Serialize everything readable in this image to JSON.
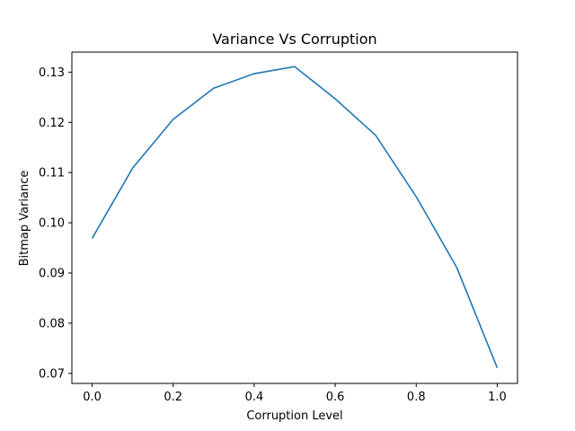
{
  "chart_data": {
    "type": "line",
    "title": "Variance Vs Corruption",
    "xlabel": "Corruption Level",
    "ylabel": "Bitmap Variance",
    "xlim": [
      -0.05,
      1.05
    ],
    "ylim": [
      0.068,
      0.134
    ],
    "grid": false,
    "x_ticks": [
      "0.0",
      "0.2",
      "0.4",
      "0.6",
      "0.8",
      "1.0"
    ],
    "y_ticks": [
      "0.07",
      "0.08",
      "0.09",
      "0.10",
      "0.11",
      "0.12",
      "0.13"
    ],
    "series": [
      {
        "color": "#1f77b4",
        "x": [
          0.0,
          0.1,
          0.2,
          0.3,
          0.4,
          0.5,
          0.6,
          0.7,
          0.8,
          0.9,
          1.0
        ],
        "y": [
          0.0969,
          0.1109,
          0.1206,
          0.1268,
          0.1297,
          0.1311,
          0.1247,
          0.1174,
          0.1052,
          0.0911,
          0.0711
        ]
      }
    ]
  }
}
